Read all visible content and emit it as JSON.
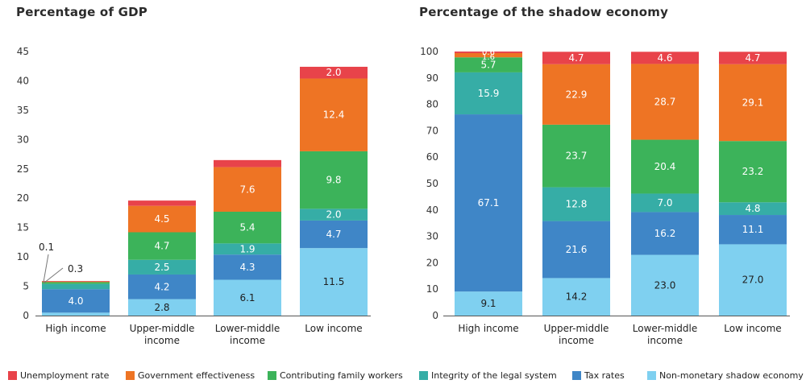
{
  "colors": {
    "unemployment": "#e8434a",
    "government": "#ee7424",
    "family": "#3cb35a",
    "legal": "#36ada6",
    "tax": "#3f86c7",
    "nonmonetary": "#7fd0f0"
  },
  "legend": [
    {
      "key": "unemployment",
      "label": "Unemployment rate"
    },
    {
      "key": "government",
      "label": "Government effectiveness"
    },
    {
      "key": "family",
      "label": "Contributing family workers"
    },
    {
      "key": "legal",
      "label": "Integrity of the legal system"
    },
    {
      "key": "tax",
      "label": "Tax rates"
    },
    {
      "key": "nonmonetary",
      "label": "Non-monetary shadow economy"
    }
  ],
  "chart_data": [
    {
      "type": "bar",
      "stacked": true,
      "title": "Percentage of GDP",
      "xlabel": "",
      "ylabel": "",
      "ylim": [
        0,
        45
      ],
      "yticks": [
        0,
        5,
        10,
        15,
        20,
        25,
        30,
        35,
        40,
        45
      ],
      "categories": [
        "High income",
        "Upper-middle income",
        "Lower-middle income",
        "Low income"
      ],
      "series": [
        {
          "name": "Non-monetary shadow economy",
          "key": "nonmonetary",
          "values": [
            0.5,
            2.8,
            6.1,
            11.5
          ]
        },
        {
          "name": "Tax rates",
          "key": "tax",
          "values": [
            4.0,
            4.2,
            4.3,
            4.7
          ]
        },
        {
          "name": "Integrity of the legal system",
          "key": "legal",
          "values": [
            0.9,
            2.5,
            1.9,
            2.0
          ]
        },
        {
          "name": "Contributing family workers",
          "key": "family",
          "values": [
            0.3,
            4.7,
            5.4,
            9.8
          ]
        },
        {
          "name": "Government effectiveness",
          "key": "government",
          "values": [
            0.1,
            4.5,
            7.6,
            12.4
          ]
        },
        {
          "name": "Unemployment rate",
          "key": "unemployment",
          "values": [
            0.1,
            0.9,
            1.2,
            2.0
          ]
        }
      ],
      "annotations": [
        "0.1",
        "0.3"
      ]
    },
    {
      "type": "bar",
      "stacked": true,
      "title": "Percentage of the shadow economy",
      "xlabel": "",
      "ylabel": "",
      "ylim": [
        0,
        100
      ],
      "yticks": [
        0,
        10,
        20,
        30,
        40,
        50,
        60,
        70,
        80,
        90,
        100
      ],
      "categories": [
        "High income",
        "Upper-middle income",
        "Lower-middle income",
        "Low income"
      ],
      "series": [
        {
          "name": "Non-monetary shadow economy",
          "key": "nonmonetary",
          "values": [
            9.1,
            14.2,
            23.0,
            27.0
          ]
        },
        {
          "name": "Tax rates",
          "key": "tax",
          "values": [
            67.1,
            21.6,
            16.2,
            11.1
          ]
        },
        {
          "name": "Integrity of the legal system",
          "key": "legal",
          "values": [
            15.9,
            12.8,
            7.0,
            4.8
          ]
        },
        {
          "name": "Contributing family workers",
          "key": "family",
          "values": [
            5.7,
            23.7,
            20.4,
            23.2
          ]
        },
        {
          "name": "Government effectiveness",
          "key": "government",
          "values": [
            1.6,
            22.9,
            28.7,
            29.1
          ]
        },
        {
          "name": "Unemployment rate",
          "key": "unemployment",
          "values": [
            0.6,
            4.7,
            4.6,
            4.7
          ]
        }
      ]
    }
  ]
}
